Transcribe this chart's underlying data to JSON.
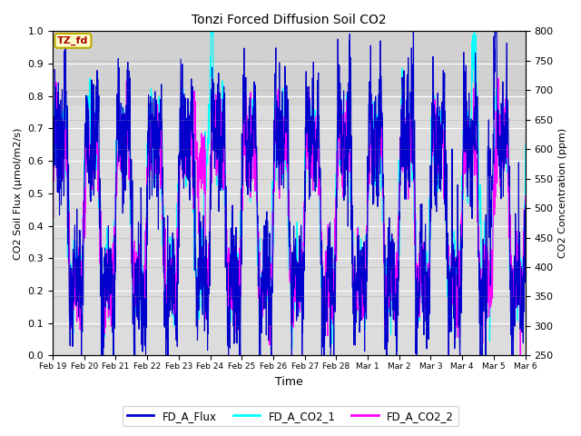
{
  "title": "Tonzi Forced Diffusion Soil CO2",
  "xlabel": "Time",
  "ylabel_left": "CO2 Soil Flux (μmol/m2/s)",
  "ylabel_right": "CO2 Concentration (ppm)",
  "ylim_left": [
    0.0,
    1.0
  ],
  "ylim_right": [
    250,
    800
  ],
  "yticks_left": [
    0.0,
    0.1,
    0.2,
    0.3,
    0.4,
    0.5,
    0.6,
    0.7,
    0.8,
    0.9,
    1.0
  ],
  "yticks_right": [
    250,
    300,
    350,
    400,
    450,
    500,
    550,
    600,
    650,
    700,
    750,
    800
  ],
  "xtick_labels": [
    "Feb 19",
    "Feb 20",
    "Feb 21",
    "Feb 22",
    "Feb 23",
    "Feb 24",
    "Feb 25",
    "Feb 26",
    "Feb 27",
    "Feb 28",
    "Mar 1",
    "Mar 2",
    "Mar 3",
    "Mar 4",
    "Mar 5",
    "Mar 6"
  ],
  "color_flux": "#0000CC",
  "color_co2_1": "#00FFFF",
  "color_co2_2": "#FF00FF",
  "label_flux": "FD_A_Flux",
  "label_co2_1": "FD_A_CO2_1",
  "label_co2_2": "FD_A_CO2_2",
  "tag_label": "TZ_fd",
  "tag_color": "#AA0000",
  "tag_bg": "#FFFFCC",
  "tag_border": "#BBAA00",
  "plot_bg": "#DCDCDC",
  "top_band_color": "#C8C8C8",
  "fig_bg": "#FFFFFF",
  "linewidth_flux": 0.8,
  "linewidth_co2": 0.9,
  "n_points": 2000,
  "seed": 7
}
